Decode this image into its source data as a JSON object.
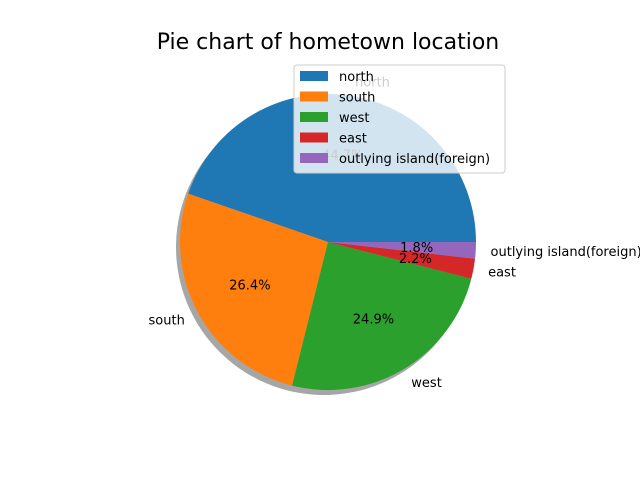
{
  "chart_data": {
    "type": "pie",
    "title": "Pie chart of hometown location",
    "categories": [
      "north",
      "south",
      "west",
      "east",
      "outlying island(foreign)"
    ],
    "values": [
      44.7,
      26.4,
      24.9,
      2.2,
      1.8
    ],
    "value_labels": [
      "44.7%",
      "26.4%",
      "24.9%",
      "2.2%",
      "1.8%"
    ],
    "colors": [
      "#1f77b4",
      "#ff7f0e",
      "#2ca02c",
      "#d62728",
      "#9467bd"
    ],
    "shadow": true,
    "legend": {
      "placement": "upper-right",
      "entries": [
        "north",
        "south",
        "west",
        "east",
        "outlying island(foreign)"
      ]
    }
  }
}
